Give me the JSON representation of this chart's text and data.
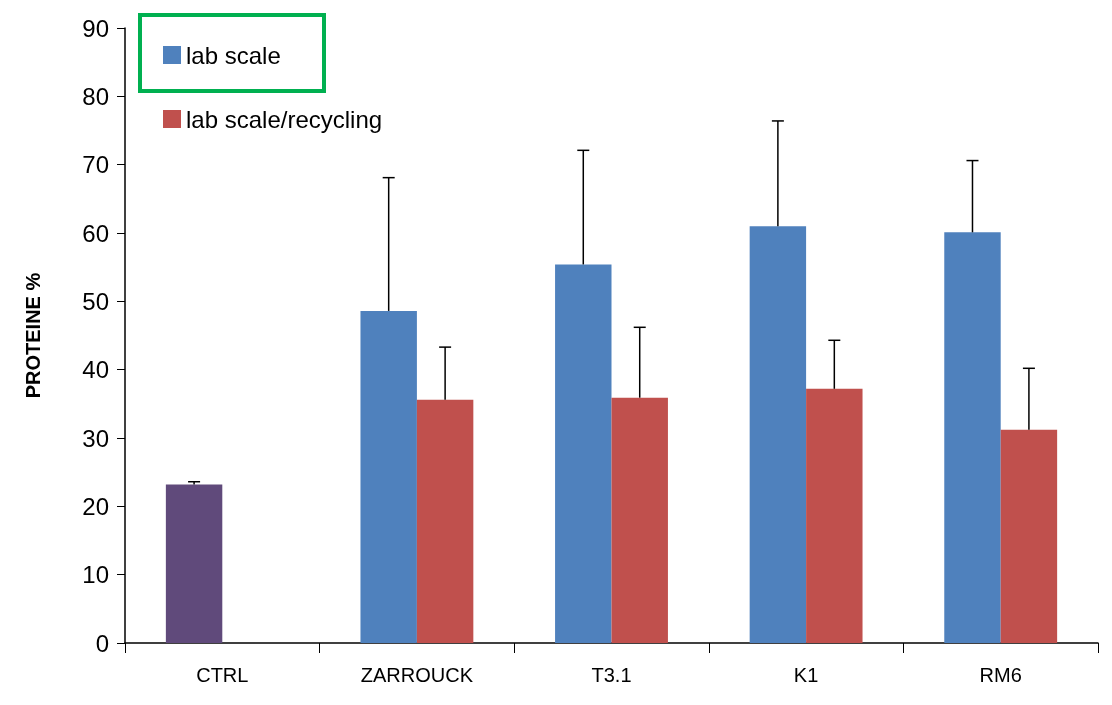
{
  "chart_data": {
    "type": "bar",
    "ylabel": "PROTEINE %",
    "categories": [
      "CTRL",
      "ZARROUCK",
      "T3.1",
      "K1",
      "RM6"
    ],
    "series": [
      {
        "name": "lab scale",
        "color": "#4f81bd",
        "colors": [
          "#604a7b",
          "#4f81bd",
          "#4f81bd",
          "#4f81bd",
          "#4f81bd"
        ],
        "values": [
          23.2,
          48.6,
          55.4,
          61.0,
          60.1
        ],
        "errors": [
          [
            23.2,
            23.6
          ],
          [
            48.6,
            68.1
          ],
          [
            55.4,
            72.1
          ],
          [
            61.0,
            76.4
          ],
          [
            60.1,
            70.6
          ]
        ]
      },
      {
        "name": "lab scale/recycling",
        "color": "#c0504d",
        "values": [
          null,
          35.6,
          35.9,
          37.2,
          31.2
        ],
        "errors": [
          null,
          [
            35.6,
            43.3
          ],
          [
            35.9,
            46.2
          ],
          [
            37.2,
            44.3
          ],
          [
            31.2,
            40.2
          ]
        ]
      }
    ],
    "ylim": [
      0,
      90
    ],
    "yticks": [
      0,
      10,
      20,
      30,
      40,
      50,
      60,
      70,
      80,
      90
    ],
    "grid": false,
    "legend": "top left"
  }
}
